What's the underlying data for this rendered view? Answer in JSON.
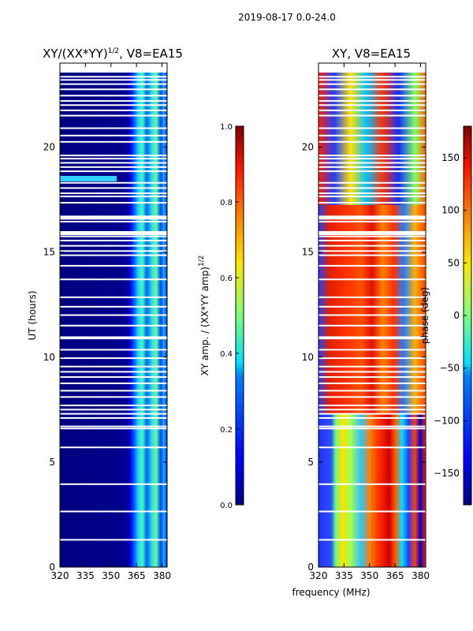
{
  "suptitle": "2019-08-17 0.0-24.0",
  "colors": {
    "background": "#ffffff",
    "low": "#000080",
    "axis": "#000000",
    "gap": "#ffffff"
  },
  "chart_data": [
    {
      "type": "heatmap",
      "title_main": "XY/(XX*YY)",
      "title_sup": "1/2",
      "title_tail": ", V8=EA15",
      "xlabel": "",
      "ylabel": "UT (hours)",
      "xlim": [
        320,
        383
      ],
      "ylim": [
        0,
        24
      ],
      "xticks": [
        320,
        335,
        350,
        365,
        380
      ],
      "yticks": [
        0,
        5,
        10,
        15,
        20
      ],
      "colorbar": {
        "label_main": "XY amp. / (XX*YY amp)",
        "label_sup": "1/2",
        "range": [
          0.0,
          1.0
        ],
        "ticks": [
          "0.0",
          "0.2",
          "0.4",
          "0.6",
          "0.8",
          "1.0"
        ],
        "colormap": "jet"
      },
      "description": "Normalized XY amplitude; near 0 below ~362 MHz, 0.3-0.7 in 363-382 MHz band; bright line at ~18.5 UT near 320-340 MHz"
    },
    {
      "type": "heatmap",
      "title_main": "XY, V8=EA15",
      "title_sup": "",
      "title_tail": "",
      "xlabel": "frequency (MHz)",
      "ylabel": "",
      "xlim": [
        320,
        383
      ],
      "ylim": [
        0,
        24
      ],
      "xticks": [
        320,
        335,
        350,
        365,
        380
      ],
      "yticks": [
        0,
        5,
        10,
        15,
        20
      ],
      "colorbar": {
        "label_main": "phase (deg)",
        "label_sup": "",
        "range": [
          -180,
          180
        ],
        "ticks": [
          "150",
          "100",
          "50",
          "0",
          "−50",
          "−100",
          "−150"
        ],
        "tick_values": [
          150,
          100,
          50,
          0,
          -50,
          -100,
          -150
        ],
        "colormap": "jet"
      },
      "description": "XY phase; 0-7 UT: ~-150 below 330 MHz, ~0-50 at 330-345 MHz, ~150 at 350-360 MHz, mixed above; 7-24 UT: mostly ~150 with bands"
    }
  ],
  "gaps_ut": [
    1.3,
    2.65,
    3.95,
    5.7,
    6.6,
    6.7,
    7.1,
    7.3,
    7.5,
    7.7,
    8.1,
    8.4,
    8.75,
    9.05,
    9.3,
    9.55,
    9.95,
    10.35,
    10.9,
    10.95,
    11.5,
    12.0,
    12.4,
    12.85,
    13.7,
    14.35,
    14.85,
    15.05,
    15.3,
    15.55,
    15.75,
    15.85,
    15.95,
    16.45,
    16.7,
    17.35,
    17.65,
    17.8,
    18.05,
    18.3,
    18.85,
    19.05,
    19.25,
    19.45,
    19.6,
    20.25,
    20.55,
    20.9,
    21.5,
    21.75,
    22.0,
    22.2,
    22.45,
    22.75,
    23.0,
    23.2,
    23.35
  ]
}
